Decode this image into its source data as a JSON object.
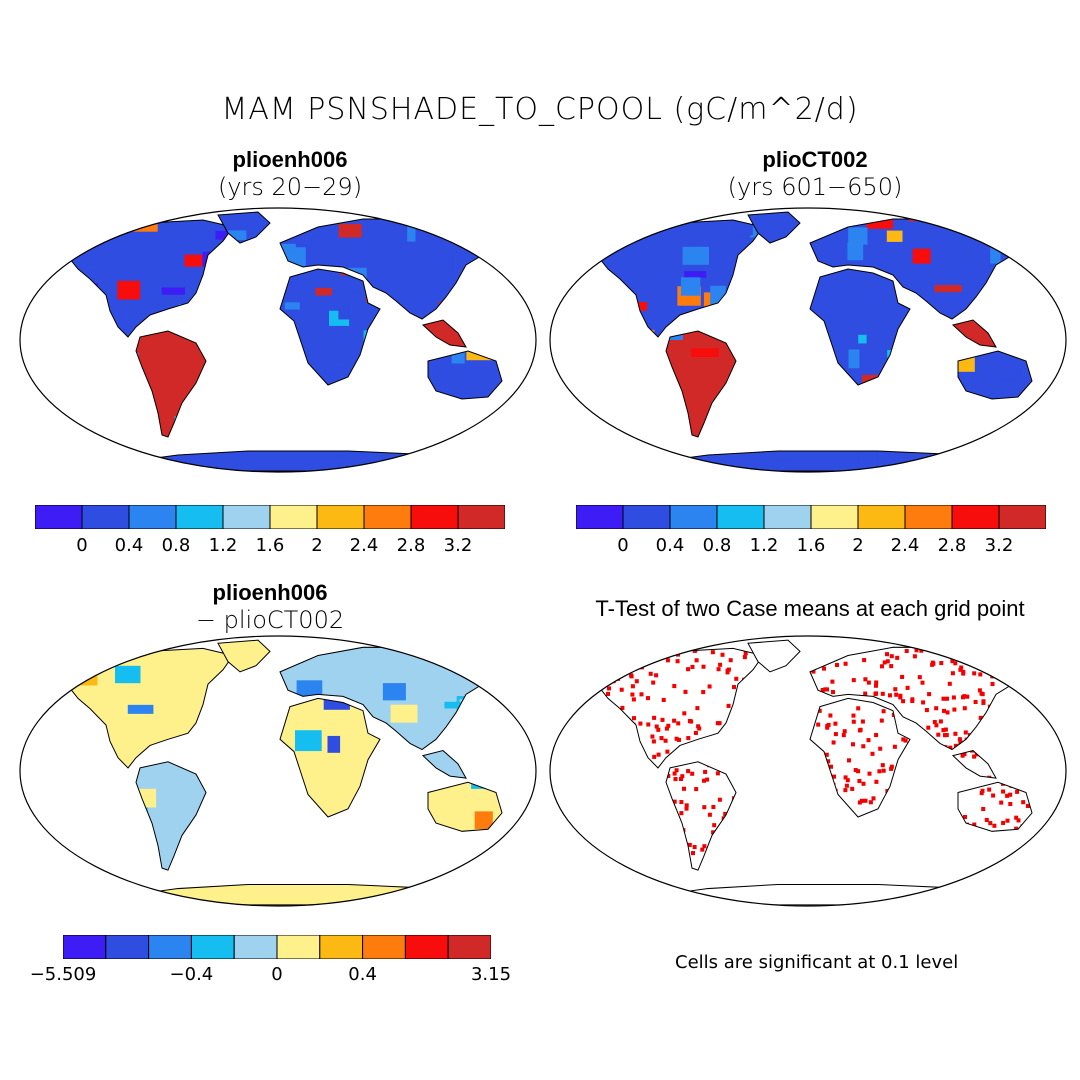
{
  "title": "MAM PSNSHADE_TO_CPOOL (gC/m^2/d)",
  "colors": {
    "seq": [
      "#3d1cf5",
      "#2f4de0",
      "#2b84ef",
      "#16bdf0",
      "#9fd2ef",
      "#fef08a",
      "#fdb913",
      "#fd7c0d",
      "#f80d0d",
      "#d12828"
    ],
    "land_background": "#ffffff",
    "significance": "#f40000"
  },
  "panels": [
    {
      "id": "case1",
      "name": "plioenh006",
      "subtitle": "(yrs 20−29)",
      "colorbar_labels": [
        "0",
        "0.4",
        "0.8",
        "1.2",
        "1.6",
        "2",
        "2.4",
        "2.8",
        "3.2"
      ]
    },
    {
      "id": "case2",
      "name": "plioCT002",
      "subtitle": "(yrs 601−650)",
      "colorbar_labels": [
        "0",
        "0.4",
        "0.8",
        "1.2",
        "1.6",
        "2",
        "2.4",
        "2.8",
        "3.2"
      ]
    },
    {
      "id": "diff",
      "name": "plioenh006",
      "subtitle": "− plioCT002",
      "colorbar_labels": [
        "−5.509",
        "−0.4",
        "0",
        "0.4",
        "3.15"
      ]
    },
    {
      "id": "ttest",
      "name": "T-Test of two Case means at each grid point",
      "subtitle": "",
      "note": "Cells are significant at 0.1 level"
    }
  ]
}
